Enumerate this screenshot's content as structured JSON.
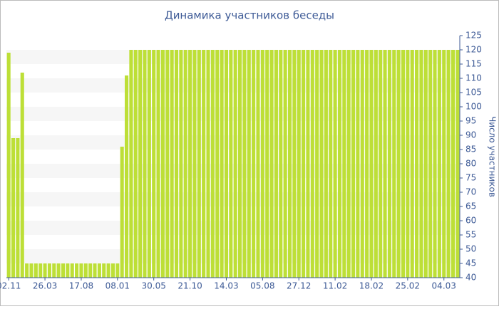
{
  "chart_data": {
    "type": "bar",
    "title": "Динамика участников беседы",
    "y_label": "Число участников",
    "categories": [
      "02.11",
      null,
      null,
      null,
      null,
      null,
      null,
      null,
      "26.03",
      null,
      null,
      null,
      null,
      null,
      null,
      null,
      "17.08",
      null,
      null,
      null,
      null,
      null,
      null,
      null,
      "08.01",
      null,
      null,
      null,
      null,
      null,
      null,
      null,
      "30.05",
      null,
      null,
      null,
      null,
      null,
      null,
      null,
      "21.10",
      null,
      null,
      null,
      null,
      null,
      null,
      null,
      "14.03",
      null,
      null,
      null,
      null,
      null,
      null,
      null,
      "05.08",
      null,
      null,
      null,
      null,
      null,
      null,
      null,
      "27.12",
      null,
      null,
      null,
      null,
      null,
      null,
      null,
      "11.02",
      null,
      null,
      null,
      null,
      null,
      null,
      null,
      "18.02",
      null,
      null,
      null,
      null,
      null,
      null,
      null,
      "25.02",
      null,
      null,
      null,
      null,
      null,
      null,
      null,
      "04.03",
      null,
      null,
      null
    ],
    "values": [
      119,
      89,
      89,
      112,
      45,
      45,
      45,
      45,
      45,
      45,
      45,
      45,
      45,
      45,
      45,
      45,
      45,
      45,
      45,
      45,
      45,
      45,
      45,
      45,
      45,
      86,
      111,
      120,
      120,
      120,
      120,
      120,
      120,
      120,
      120,
      120,
      120,
      120,
      120,
      120,
      120,
      120,
      120,
      120,
      120,
      120,
      120,
      120,
      120,
      120,
      120,
      120,
      120,
      120,
      120,
      120,
      120,
      120,
      120,
      120,
      120,
      120,
      120,
      120,
      120,
      120,
      120,
      120,
      120,
      120,
      120,
      120,
      120,
      120,
      120,
      120,
      120,
      120,
      120,
      120,
      120,
      120,
      120,
      120,
      120,
      120,
      120,
      120,
      120,
      120,
      120,
      120,
      120,
      120,
      120,
      120,
      120,
      120,
      120,
      120
    ],
    "color": "#bddf37",
    "ylim": [
      40,
      125
    ],
    "yticks": [
      40,
      45,
      50,
      55,
      60,
      65,
      70,
      75,
      80,
      85,
      90,
      95,
      100,
      105,
      110,
      115,
      120,
      125
    ],
    "grid": true
  }
}
